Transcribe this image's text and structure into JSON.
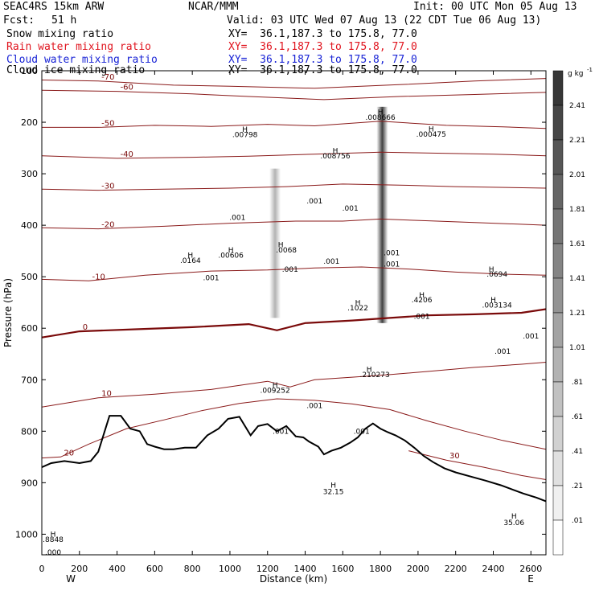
{
  "header": {
    "model": "SEAC4RS 15km ARW",
    "org": "NCAR/MMM",
    "init": "Init: 00 UTC Mon 05 Aug 13",
    "fcst_label": "Fcst:",
    "fcst_value": "51 h",
    "valid": "Valid: 03 UTC Wed 07 Aug 13 (22 CDT Tue 06 Aug 13)",
    "fields": [
      {
        "name": "Snow mixing ratio",
        "xy": "XY=  36.1,187.3 to 175.8, 77.0",
        "color": "#000000"
      },
      {
        "name": "Rain water mixing ratio",
        "xy": "XY=  36.1,187.3 to 175.8, 77.0",
        "color": "#e0141e"
      },
      {
        "name": "Cloud water mixing ratio",
        "xy": "XY=  36.1,187.3 to 175.8, 77.0",
        "color": "#1a25d6"
      },
      {
        "name": "Cloud ice mixing ratio",
        "xy": "XY=  36.1,187.3 to 175.8, 77.0",
        "color": "#000000"
      }
    ]
  },
  "chart_data": {
    "type": "cross-section",
    "xlabel": "Distance (km)",
    "ylabel": "Pressure (hPa)",
    "xlim": [
      0,
      2680
    ],
    "ylim": [
      1040,
      100
    ],
    "x_ticks": [
      0,
      200,
      400,
      600,
      800,
      1000,
      1200,
      1400,
      1600,
      1800,
      2000,
      2200,
      2400,
      2600
    ],
    "y_ticks": [
      100,
      200,
      300,
      400,
      500,
      600,
      700,
      800,
      900,
      1000
    ],
    "y_tick_labels": [
      "100",
      "200",
      "300",
      "400",
      "500",
      "600",
      "700",
      "800",
      "900",
      "1000"
    ],
    "west_label": "W",
    "east_label": "E",
    "colorbar": {
      "unit": "g kg",
      "unit_exp": "-1",
      "labels": [
        "2.41",
        "2.21",
        "2.01",
        "1.81",
        "1.61",
        "1.41",
        "1.21",
        "1.01",
        ".81",
        ".61",
        ".41",
        ".21",
        ".01"
      ],
      "levels": [
        2.41,
        2.21,
        2.01,
        1.81,
        1.61,
        1.41,
        1.21,
        1.01,
        0.81,
        0.61,
        0.41,
        0.21,
        0.01
      ]
    },
    "terrain": [
      [
        0,
        870
      ],
      [
        50,
        862
      ],
      [
        120,
        858
      ],
      [
        200,
        862
      ],
      [
        260,
        858
      ],
      [
        300,
        840
      ],
      [
        360,
        770
      ],
      [
        420,
        770
      ],
      [
        470,
        795
      ],
      [
        520,
        800
      ],
      [
        560,
        825
      ],
      [
        600,
        830
      ],
      [
        650,
        835
      ],
      [
        700,
        835
      ],
      [
        760,
        832
      ],
      [
        820,
        832
      ],
      [
        880,
        808
      ],
      [
        940,
        795
      ],
      [
        990,
        776
      ],
      [
        1050,
        772
      ],
      [
        1110,
        808
      ],
      [
        1150,
        790
      ],
      [
        1200,
        786
      ],
      [
        1250,
        800
      ],
      [
        1300,
        790
      ],
      [
        1350,
        810
      ],
      [
        1390,
        812
      ],
      [
        1420,
        820
      ],
      [
        1470,
        830
      ],
      [
        1500,
        845
      ],
      [
        1540,
        838
      ],
      [
        1590,
        832
      ],
      [
        1640,
        822
      ],
      [
        1680,
        812
      ],
      [
        1720,
        795
      ],
      [
        1760,
        785
      ],
      [
        1800,
        795
      ],
      [
        1840,
        802
      ],
      [
        1880,
        808
      ],
      [
        1930,
        818
      ],
      [
        1980,
        832
      ],
      [
        2030,
        848
      ],
      [
        2080,
        860
      ],
      [
        2140,
        872
      ],
      [
        2200,
        880
      ],
      [
        2280,
        888
      ],
      [
        2360,
        896
      ],
      [
        2440,
        905
      ],
      [
        2500,
        913
      ],
      [
        2560,
        921
      ],
      [
        2630,
        929
      ],
      [
        2680,
        936
      ]
    ],
    "temperature_isotherms": [
      {
        "label": "-70",
        "points": [
          [
            0,
            118
          ],
          [
            300,
            120
          ],
          [
            700,
            128
          ],
          [
            1000,
            130
          ],
          [
            1450,
            134
          ],
          [
            1900,
            127
          ],
          [
            2300,
            120
          ],
          [
            2680,
            115
          ]
        ]
      },
      {
        "label": "-60",
        "points": [
          [
            0,
            138
          ],
          [
            400,
            140
          ],
          [
            800,
            145
          ],
          [
            1100,
            150
          ],
          [
            1500,
            156
          ],
          [
            1900,
            150
          ],
          [
            2300,
            146
          ],
          [
            2680,
            142
          ]
        ]
      },
      {
        "label": "-50",
        "points": [
          [
            0,
            210
          ],
          [
            300,
            210
          ],
          [
            600,
            206
          ],
          [
            900,
            208
          ],
          [
            1200,
            204
          ],
          [
            1450,
            207
          ],
          [
            1800,
            198
          ],
          [
            2150,
            206
          ],
          [
            2450,
            209
          ],
          [
            2680,
            212
          ]
        ]
      },
      {
        "label": "-40",
        "points": [
          [
            0,
            265
          ],
          [
            400,
            270
          ],
          [
            800,
            268
          ],
          [
            1100,
            266
          ],
          [
            1450,
            262
          ],
          [
            1800,
            258
          ],
          [
            2100,
            260
          ],
          [
            2400,
            262
          ],
          [
            2680,
            265
          ]
        ]
      },
      {
        "label": "-30",
        "points": [
          [
            0,
            330
          ],
          [
            300,
            332
          ],
          [
            650,
            330
          ],
          [
            1000,
            328
          ],
          [
            1300,
            325
          ],
          [
            1600,
            320
          ],
          [
            1900,
            322
          ],
          [
            2200,
            325
          ],
          [
            2680,
            328
          ]
        ]
      },
      {
        "label": "-20",
        "points": [
          [
            0,
            405
          ],
          [
            300,
            407
          ],
          [
            650,
            402
          ],
          [
            1000,
            396
          ],
          [
            1350,
            392
          ],
          [
            1600,
            392
          ],
          [
            1800,
            388
          ],
          [
            2100,
            392
          ],
          [
            2400,
            396
          ],
          [
            2680,
            400
          ]
        ]
      },
      {
        "label": "-10",
        "points": [
          [
            0,
            505
          ],
          [
            250,
            508
          ],
          [
            550,
            497
          ],
          [
            900,
            489
          ],
          [
            1200,
            487
          ],
          [
            1450,
            483
          ],
          [
            1700,
            481
          ],
          [
            1950,
            485
          ],
          [
            2200,
            491
          ],
          [
            2450,
            495
          ],
          [
            2680,
            497
          ]
        ]
      },
      {
        "label": "0",
        "points": [
          [
            0,
            618
          ],
          [
            200,
            606
          ],
          [
            500,
            602
          ],
          [
            800,
            598
          ],
          [
            1100,
            592
          ],
          [
            1250,
            604
          ],
          [
            1400,
            590
          ],
          [
            1650,
            585
          ],
          [
            1850,
            580
          ],
          [
            2050,
            575
          ],
          [
            2300,
            573
          ],
          [
            2550,
            570
          ],
          [
            2680,
            563
          ]
        ]
      },
      {
        "label": "10",
        "points": [
          [
            0,
            753
          ],
          [
            300,
            735
          ],
          [
            600,
            728
          ],
          [
            900,
            719
          ],
          [
            1200,
            703
          ],
          [
            1320,
            714
          ],
          [
            1450,
            700
          ],
          [
            1650,
            695
          ],
          [
            1850,
            690
          ],
          [
            2050,
            684
          ],
          [
            2300,
            676
          ],
          [
            2550,
            670
          ],
          [
            2680,
            666
          ]
        ]
      },
      {
        "label": "20",
        "points": [
          [
            0,
            852
          ],
          [
            100,
            850
          ],
          [
            250,
            825
          ],
          [
            450,
            795
          ],
          [
            650,
            778
          ],
          [
            850,
            760
          ],
          [
            1050,
            746
          ],
          [
            1250,
            737
          ],
          [
            1450,
            740
          ],
          [
            1650,
            747
          ],
          [
            1850,
            758
          ],
          [
            2050,
            780
          ],
          [
            2250,
            800
          ],
          [
            2450,
            818
          ],
          [
            2680,
            835
          ]
        ]
      },
      {
        "label": "30",
        "points": [
          [
            1950,
            838
          ],
          [
            2150,
            856
          ],
          [
            2350,
            870
          ],
          [
            2550,
            886
          ],
          [
            2680,
            894
          ]
        ]
      }
    ],
    "snow_columns_x": [
      1240,
      1810
    ],
    "annotations": [
      {
        "text": "H",
        "x": 1800,
        "y": 185
      },
      {
        "text": ".008666",
        "x": 1800,
        "y": 195
      },
      {
        "text": "H",
        "x": 1080,
        "y": 219
      },
      {
        "text": ".00798",
        "x": 1080,
        "y": 229
      },
      {
        "text": "H",
        "x": 2070,
        "y": 218
      },
      {
        "text": ".000475",
        "x": 2070,
        "y": 228
      },
      {
        "text": "H",
        "x": 1560,
        "y": 260
      },
      {
        "text": ".008756",
        "x": 1560,
        "y": 270
      },
      {
        "text": ".001",
        "x": 1450,
        "y": 358
      },
      {
        "text": ".001",
        "x": 1640,
        "y": 372
      },
      {
        "text": ".001",
        "x": 1040,
        "y": 390
      },
      {
        "text": "H",
        "x": 1270,
        "y": 443
      },
      {
        "text": ".0068",
        "x": 1300,
        "y": 453
      },
      {
        "text": ".001",
        "x": 1320,
        "y": 490
      },
      {
        "text": ".001",
        "x": 1540,
        "y": 475
      },
      {
        "text": ".001",
        "x": 1860,
        "y": 458
      },
      {
        "text": ".001",
        "x": 1860,
        "y": 480
      },
      {
        "text": "H",
        "x": 1005,
        "y": 453
      },
      {
        "text": ".00606",
        "x": 1005,
        "y": 463
      },
      {
        "text": "H",
        "x": 790,
        "y": 463
      },
      {
        "text": ".0164",
        "x": 790,
        "y": 473
      },
      {
        "text": ".001",
        "x": 900,
        "y": 507
      },
      {
        "text": "H",
        "x": 1680,
        "y": 555
      },
      {
        "text": ".1022",
        "x": 1680,
        "y": 565
      },
      {
        "text": "H",
        "x": 2020,
        "y": 540
      },
      {
        "text": ".4206",
        "x": 2020,
        "y": 550
      },
      {
        "text": ".001",
        "x": 2020,
        "y": 582
      },
      {
        "text": "H",
        "x": 2390,
        "y": 490
      },
      {
        "text": ".0694",
        "x": 2420,
        "y": 500
      },
      {
        "text": "H",
        "x": 2400,
        "y": 550
      },
      {
        "text": ".003134",
        "x": 2420,
        "y": 560
      },
      {
        "text": ".001",
        "x": 2600,
        "y": 620
      },
      {
        "text": ".001",
        "x": 2450,
        "y": 650
      },
      {
        "text": "H",
        "x": 1740,
        "y": 685
      },
      {
        "text": ".210273",
        "x": 1770,
        "y": 695
      },
      {
        "text": "H",
        "x": 1240,
        "y": 715
      },
      {
        "text": ".009252",
        "x": 1240,
        "y": 725
      },
      {
        "text": ".001",
        "x": 1450,
        "y": 755
      },
      {
        "text": ".001",
        "x": 1270,
        "y": 805
      },
      {
        "text": ".001",
        "x": 1700,
        "y": 805
      },
      {
        "text": "H",
        "x": 1550,
        "y": 910
      },
      {
        "text": "32.15",
        "x": 1550,
        "y": 922
      },
      {
        "text": "H",
        "x": 2510,
        "y": 970
      },
      {
        "text": "35.06",
        "x": 2510,
        "y": 982
      },
      {
        "text": "H",
        "x": 60,
        "y": 1005
      },
      {
        "text": ".8848",
        "x": 60,
        "y": 1015
      },
      {
        "text": ".000",
        "x": 60,
        "y": 1040
      }
    ]
  }
}
